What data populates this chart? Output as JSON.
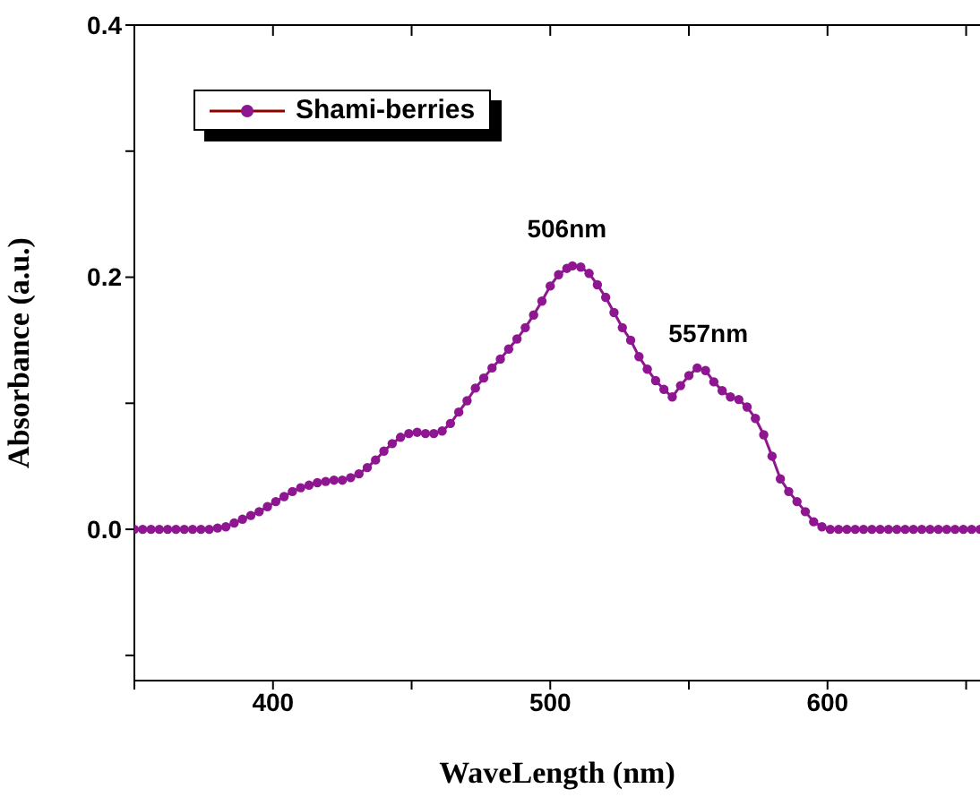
{
  "chart_data": {
    "type": "line",
    "xlabel": "WaveLength (nm)",
    "ylabel": "Absorbance (a.u.)",
    "x": [
      350,
      353,
      356,
      359,
      362,
      365,
      368,
      371,
      374,
      377,
      380,
      383,
      386,
      389,
      392,
      395,
      398,
      401,
      404,
      407,
      410,
      413,
      416,
      419,
      422,
      425,
      428,
      431,
      434,
      437,
      440,
      443,
      446,
      449,
      452,
      455,
      458,
      461,
      464,
      467,
      470,
      473,
      476,
      479,
      482,
      485,
      488,
      491,
      494,
      497,
      500,
      503,
      506,
      508,
      511,
      514,
      517,
      520,
      523,
      526,
      529,
      532,
      535,
      538,
      541,
      544,
      547,
      550,
      553,
      556,
      559,
      562,
      565,
      568,
      571,
      574,
      577,
      580,
      583,
      586,
      589,
      592,
      595,
      598,
      601,
      604,
      607,
      610,
      613,
      616,
      619,
      622,
      625,
      628,
      631,
      634,
      637,
      640,
      643,
      646,
      649,
      652,
      655
    ],
    "series": [
      {
        "name": "Shami-berries",
        "color": "#8e1690",
        "values": [
          0,
          0,
          0,
          0,
          0,
          0,
          0,
          0,
          0,
          0,
          0.001,
          0.002,
          0.005,
          0.008,
          0.011,
          0.014,
          0.018,
          0.022,
          0.026,
          0.03,
          0.033,
          0.035,
          0.037,
          0.038,
          0.039,
          0.039,
          0.041,
          0.044,
          0.049,
          0.055,
          0.062,
          0.068,
          0.073,
          0.076,
          0.077,
          0.076,
          0.076,
          0.078,
          0.084,
          0.093,
          0.102,
          0.112,
          0.12,
          0.128,
          0.135,
          0.143,
          0.151,
          0.16,
          0.17,
          0.181,
          0.193,
          0.202,
          0.207,
          0.209,
          0.208,
          0.203,
          0.194,
          0.184,
          0.172,
          0.16,
          0.15,
          0.137,
          0.127,
          0.118,
          0.111,
          0.105,
          0.114,
          0.122,
          0.128,
          0.126,
          0.117,
          0.11,
          0.105,
          0.103,
          0.097,
          0.088,
          0.075,
          0.058,
          0.04,
          0.03,
          0.022,
          0.014,
          0.006,
          0.002,
          0,
          0,
          0,
          0,
          0,
          0,
          0,
          0,
          0,
          0,
          0,
          0,
          0,
          0,
          0,
          0,
          0,
          0,
          0
        ]
      }
    ],
    "xlim": [
      350,
      655
    ],
    "xticks": [
      {
        "value": 350,
        "label": null
      },
      400,
      {
        "value": 450,
        "label": null
      },
      500,
      {
        "value": 550,
        "label": null
      },
      600,
      {
        "value": 650,
        "label": null
      }
    ],
    "ylim": [
      -0.12,
      0.4
    ],
    "yticks": [
      {
        "value": -0.1,
        "label": null
      },
      "0.0",
      {
        "value": 0.1,
        "label": null
      },
      0.2,
      {
        "value": 0.3,
        "label": null
      },
      0.4
    ],
    "marker": "circle",
    "legend": "top left",
    "annotations": [
      {
        "text": "506nm",
        "x": 506,
        "y": 0.209
      },
      {
        "text": "557nm",
        "x": 557,
        "y": 0.126
      }
    ]
  }
}
